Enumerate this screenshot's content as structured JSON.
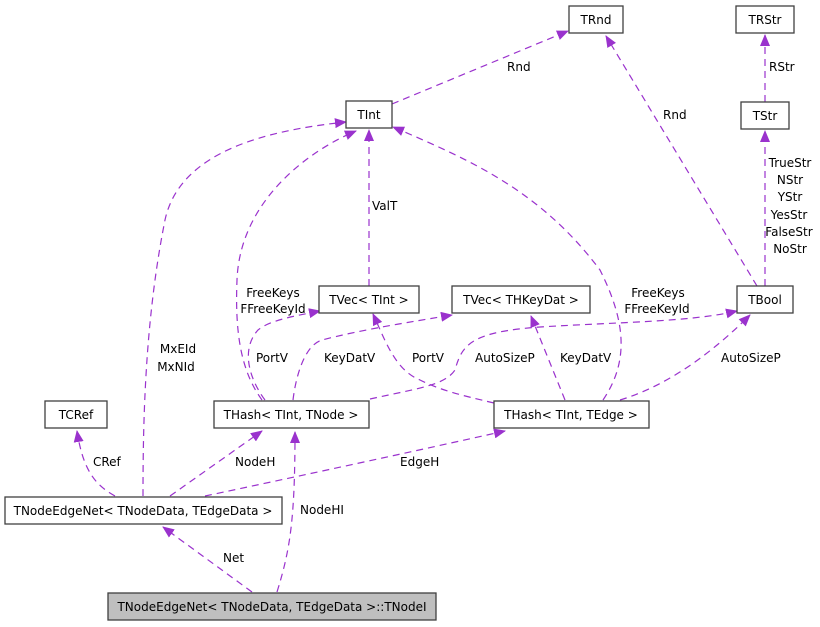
{
  "colors": {
    "edge": "#9a32cd",
    "node_border": "#404040",
    "current_node_fill": "#bfbfbf"
  },
  "nodes": {
    "trnd": "TRnd",
    "trstr": "TRStr",
    "tint": "TInt",
    "tstr": "TStr",
    "tvec_tint": "TVec< TInt >",
    "tvec_thkeydat": "TVec< THKeyDat >",
    "tbool": "TBool",
    "tcref": "TCRef",
    "thash_tnode": "THash< TInt, TNode >",
    "thash_tedge": "THash< TInt, TEdge >",
    "tnodeedgenet": "TNodeEdgeNet< TNodeData, TEdgeData >",
    "tnodei": "TNodeEdgeNet< TNodeData, TEdgeData >::TNodeI"
  },
  "edges": {
    "tint_trnd": "Rnd",
    "tbool_trnd": "Rnd",
    "tstr_trstr": "RStr",
    "tbool_tstr": [
      "TrueStr",
      "NStr",
      "YStr",
      "YesStr",
      "FalseStr",
      "NoStr"
    ],
    "tvec_tint_tint": "ValT",
    "thash_tnode_tint": [
      "FreeKeys",
      "FFreeKeyId"
    ],
    "thash_tedge_tint": [
      "FreeKeys",
      "FFreeKeyId"
    ],
    "net_tint": [
      "MxEId",
      "MxNId"
    ],
    "thash_tnode_tvec_tint": "PortV",
    "thash_tnode_tvec_thkeydat": "KeyDatV",
    "thash_tnode_tbool": "AutoSizeP",
    "thash_tedge_tvec_tint": "PortV",
    "thash_tedge_tvec_thkeydat": "KeyDatV",
    "thash_tedge_tbool": "AutoSizeP",
    "net_tcref": "CRef",
    "net_thash_tnode": "NodeH",
    "net_thash_tedge": "EdgeH",
    "tnodei_net": "Net",
    "tnodei_thash_tnode": "NodeHI"
  }
}
